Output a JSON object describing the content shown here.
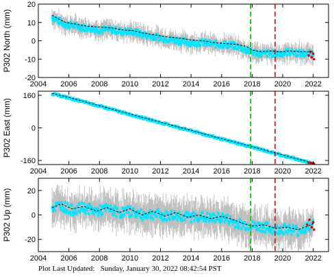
{
  "colors": {
    "observed": "#00e5ff",
    "error_bars": "#b4b4b4",
    "model": "#000000",
    "recent": "#e00000",
    "event_green": "#00bb00",
    "event_red": "#ee0000"
  },
  "footer": {
    "label": "Plot Last Updated:",
    "value": "Sunday, January 30, 2022 08:42:54 PST"
  },
  "chart_data": [
    {
      "type": "scatter",
      "title": "",
      "xlabel": "",
      "ylabel": "P302 North (mm)",
      "xlim": [
        2004,
        2023
      ],
      "ylim": [
        -20,
        20
      ],
      "xticks": [
        2004,
        2006,
        2008,
        2010,
        2012,
        2014,
        2016,
        2018,
        2020,
        2022
      ],
      "yticks": [
        -20,
        -10,
        0,
        10,
        20
      ],
      "grid": false,
      "vlines": [
        {
          "x": 2017.9,
          "color": "green",
          "style": "dashed"
        },
        {
          "x": 2019.5,
          "color": "red",
          "style": "dashed"
        }
      ],
      "series": [
        {
          "role": "observed",
          "x": [
            2004.9,
            2005.3,
            2005.8,
            2006.5,
            2007.2,
            2008.0,
            2008.8,
            2009.5,
            2010.2,
            2011.0,
            2011.8,
            2012.5,
            2013.2,
            2014.0,
            2014.8,
            2015.5,
            2016.2,
            2017.0,
            2017.6,
            2018.0,
            2018.6,
            2019.2,
            2019.8,
            2020.5,
            2021.2,
            2022.0
          ],
          "y": [
            13,
            11,
            9,
            8,
            7,
            6,
            6,
            5,
            5,
            3,
            2,
            1,
            0,
            -1,
            -1,
            -2,
            -2,
            -3,
            -5,
            -6,
            -7,
            -7,
            -7,
            -6,
            -7,
            -7
          ],
          "err": 4
        },
        {
          "role": "model",
          "x": [
            2004.9,
            2005.3,
            2005.8,
            2006.5,
            2007.2,
            2008.0,
            2008.8,
            2009.5,
            2010.2,
            2011.0,
            2011.8,
            2012.5,
            2013.2,
            2014.0,
            2014.8,
            2015.5,
            2016.2,
            2017.0,
            2017.6,
            2018.0,
            2018.6,
            2019.2,
            2019.8,
            2020.5,
            2021.2,
            2022.0
          ],
          "y": [
            14,
            12,
            10,
            9,
            8,
            7.5,
            7,
            6,
            5.5,
            4,
            3,
            2,
            1.5,
            0.5,
            0,
            -1,
            -1.5,
            -2,
            -3,
            -5,
            -6,
            -5.5,
            -6,
            -5.5,
            -6,
            -6
          ]
        },
        {
          "role": "recent",
          "x": [
            2021.7,
            2021.8,
            2021.9,
            2022.0,
            2022.05
          ],
          "y": [
            -8,
            -6,
            -9,
            -7,
            -10
          ]
        }
      ]
    },
    {
      "type": "scatter",
      "title": "",
      "xlabel": "",
      "ylabel": "P302 East (mm)",
      "xlim": [
        2004,
        2023
      ],
      "ylim": [
        -180,
        180
      ],
      "xticks": [
        2004,
        2006,
        2008,
        2010,
        2012,
        2014,
        2016,
        2018,
        2020,
        2022
      ],
      "yticks": [
        -160,
        0,
        160
      ],
      "grid": false,
      "vlines": [
        {
          "x": 2017.9,
          "color": "green",
          "style": "dashed"
        },
        {
          "x": 2019.5,
          "color": "red",
          "style": "dashed"
        }
      ],
      "series": [
        {
          "role": "observed",
          "x": [
            2004.9,
            2006.0,
            2008.0,
            2010.0,
            2012.0,
            2014.0,
            2016.0,
            2018.0,
            2020.0,
            2022.0
          ],
          "y": [
            168,
            147,
            107,
            66,
            26,
            -14,
            -55,
            -94,
            -135,
            -175
          ],
          "err": 4
        },
        {
          "role": "model",
          "x": [
            2004.9,
            2006.0,
            2008.0,
            2010.0,
            2012.0,
            2014.0,
            2016.0,
            2018.0,
            2020.0,
            2022.0
          ],
          "y": [
            170,
            149,
            109,
            68,
            28,
            -12,
            -53,
            -92,
            -133,
            -173
          ]
        },
        {
          "role": "recent",
          "x": [
            2021.7,
            2021.85,
            2022.0,
            2022.05
          ],
          "y": [
            -170,
            -172,
            -174,
            -176
          ]
        }
      ]
    },
    {
      "type": "scatter",
      "title": "",
      "xlabel": "",
      "ylabel": "P302 Up (mm)",
      "xlim": [
        2004,
        2023
      ],
      "ylim": [
        -30,
        30
      ],
      "xticks": [
        2004,
        2006,
        2008,
        2010,
        2012,
        2014,
        2016,
        2018,
        2020,
        2022
      ],
      "yticks": [
        -20,
        0,
        20
      ],
      "grid": false,
      "vlines": [
        {
          "x": 2017.9,
          "color": "green",
          "style": "dashed"
        },
        {
          "x": 2019.5,
          "color": "red",
          "style": "dashed"
        }
      ],
      "series": [
        {
          "role": "observed",
          "x": [
            2004.9,
            2005.5,
            2006.2,
            2007.0,
            2007.8,
            2008.5,
            2009.3,
            2010.0,
            2010.8,
            2011.5,
            2012.3,
            2013.0,
            2013.8,
            2014.5,
            2015.3,
            2016.0,
            2016.8,
            2017.4,
            2018.0,
            2018.8,
            2019.5,
            2020.3,
            2021.0,
            2021.7,
            2022.0
          ],
          "y": [
            6,
            8,
            4,
            6,
            3,
            5,
            2,
            3,
            0,
            1,
            -1,
            0,
            -2,
            -1,
            -3,
            -2,
            -6,
            -8,
            -9,
            -10,
            -12,
            -11,
            -13,
            -10,
            -8
          ],
          "err": 12
        },
        {
          "role": "model",
          "x": [
            2004.9,
            2005.5,
            2006.2,
            2007.0,
            2007.8,
            2008.5,
            2009.3,
            2010.0,
            2010.8,
            2011.5,
            2012.3,
            2013.0,
            2013.8,
            2014.5,
            2015.3,
            2016.0,
            2016.8,
            2017.4,
            2018.0,
            2018.8,
            2019.5,
            2020.3,
            2021.0,
            2021.7,
            2022.0
          ],
          "y": [
            6,
            9,
            5,
            7,
            3,
            6,
            2,
            5,
            0,
            3,
            -1,
            2,
            -2,
            0,
            -3,
            -1,
            -4,
            -7,
            -9,
            -8,
            -11,
            -10,
            -12,
            -9,
            -7
          ]
        },
        {
          "role": "recent",
          "x": [
            2021.6,
            2021.75,
            2021.9,
            2022.0,
            2022.05
          ],
          "y": [
            -8,
            -4,
            -10,
            -6,
            -12
          ]
        }
      ]
    }
  ]
}
